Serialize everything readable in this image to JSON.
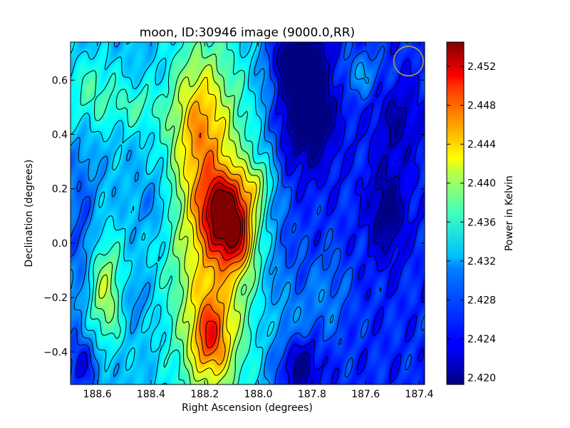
{
  "chart_data": {
    "type": "heatmap",
    "title": "moon, ID:30946 image (9000.0,RR)",
    "xlabel": "Right Ascension (degrees)",
    "ylabel": "Declination (degrees)",
    "xlim": [
      188.7,
      187.38
    ],
    "ylim": [
      -0.52,
      0.74
    ],
    "x_axis_reversed": true,
    "xticks": [
      188.6,
      188.4,
      188.2,
      188.0,
      187.8,
      187.6,
      187.4
    ],
    "xtick_labels": [
      "188.6",
      "188.4",
      "188.2",
      "188.0",
      "187.8",
      "187.6",
      "187.4"
    ],
    "yticks": [
      -0.4,
      -0.2,
      0.0,
      0.2,
      0.4,
      0.6
    ],
    "ytick_labels": [
      "−0.4",
      "−0.2",
      "0.0",
      "0.2",
      "0.4",
      "0.6"
    ],
    "colorbar": {
      "label": "Power in Kelvin",
      "range": [
        2.4193,
        2.4545
      ],
      "ticks": [
        2.42,
        2.424,
        2.428,
        2.432,
        2.436,
        2.44,
        2.444,
        2.448,
        2.452
      ],
      "tick_labels": [
        "2.420",
        "2.424",
        "2.428",
        "2.432",
        "2.436",
        "2.440",
        "2.444",
        "2.448",
        "2.452"
      ],
      "colormap": "jet"
    },
    "peak": {
      "ra": 188.11,
      "dec": 0.11,
      "value": 2.4535
    },
    "minimum": {
      "ra": 187.82,
      "dec": 0.45,
      "value": 2.4195
    },
    "contours": "black contour lines overlay",
    "beam_circle": {
      "ra": 187.44,
      "dec": 0.67,
      "radius_deg": 0.055,
      "color": "#b5a642"
    },
    "grid": false,
    "legend": "none"
  }
}
